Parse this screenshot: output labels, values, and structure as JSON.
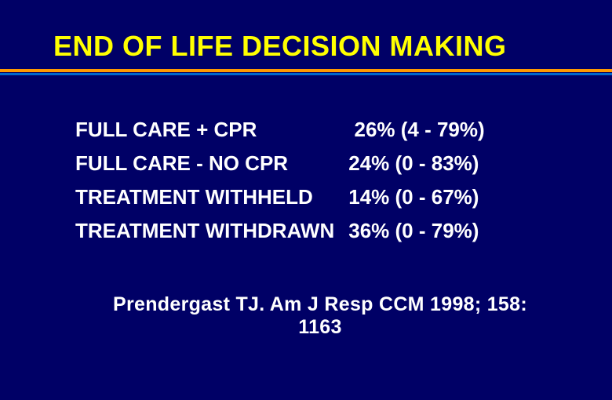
{
  "slide": {
    "title": "END OF LIFE DECISION MAKING",
    "background_color": "#000066",
    "title_color": "#ffff00",
    "text_color": "#ffffff",
    "divider_top_color": "#ff9900",
    "divider_bottom_color": "#0066cc",
    "title_fontsize": 36,
    "body_fontsize": 26,
    "citation_fontsize": 25
  },
  "table": {
    "type": "table",
    "rows": [
      {
        "label": "FULL CARE + CPR",
        "value": "26% (4 - 79%)"
      },
      {
        "label": "FULL CARE - NO CPR",
        "value": "24% (0 - 83%)"
      },
      {
        "label": "TREATMENT WITHHELD",
        "value": "14% (0 - 67%)"
      },
      {
        "label": "TREATMENT WITHDRAWN",
        "value": "36% (0 - 79%)"
      }
    ]
  },
  "citation": "Prendergast TJ. Am J Resp CCM 1998; 158: 1163"
}
